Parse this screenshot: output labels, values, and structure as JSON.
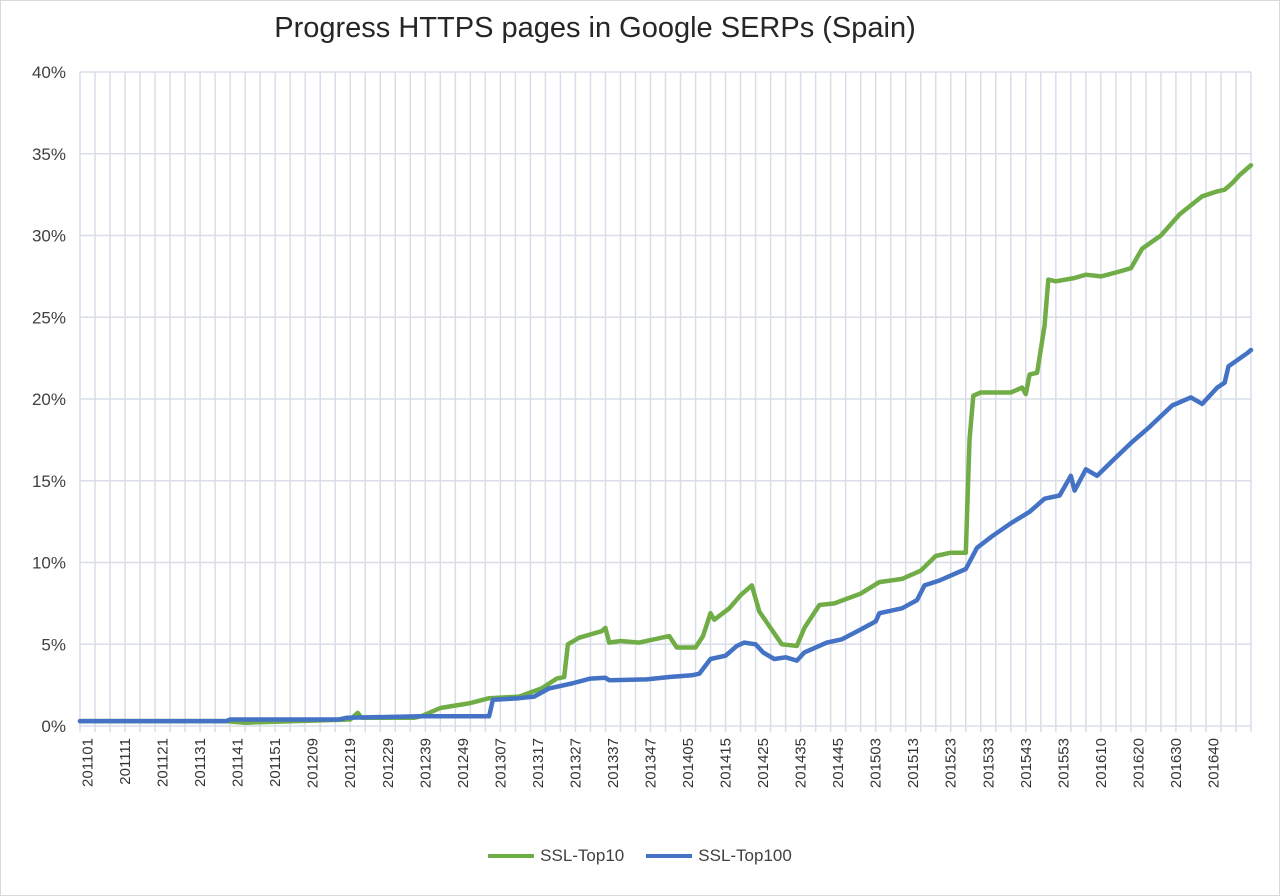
{
  "chart_data": {
    "type": "line",
    "title": "Progress HTTPS pages in Google SERPs (Spain)",
    "xlabel": "",
    "ylabel": "",
    "ylim": [
      0,
      40
    ],
    "yticks": [
      "0%",
      "5%",
      "10%",
      "15%",
      "20%",
      "25%",
      "30%",
      "35%",
      "40%"
    ],
    "x_unit": "weeks since 201101",
    "xlim": [
      -2,
      310
    ],
    "categories": [
      "201101",
      "201111",
      "201121",
      "201131",
      "201141",
      "201151",
      "201209",
      "201219",
      "201229",
      "201239",
      "201249",
      "201307",
      "201317",
      "201327",
      "201337",
      "201347",
      "201405",
      "201415",
      "201425",
      "201435",
      "201445",
      "201503",
      "201513",
      "201523",
      "201533",
      "201543",
      "201553",
      "201610",
      "201620",
      "201630",
      "201640"
    ],
    "category_step_weeks": 10,
    "grid": true,
    "legend_position": "bottom",
    "series": [
      {
        "name": "SSL-Top10",
        "color": "#70ad47",
        "points": [
          [
            -2,
            0.3
          ],
          [
            37,
            0.3
          ],
          [
            42,
            0.2
          ],
          [
            70,
            0.4
          ],
          [
            72,
            0.8
          ],
          [
            73,
            0.5
          ],
          [
            87,
            0.5
          ],
          [
            89,
            0.6
          ],
          [
            94,
            1.1
          ],
          [
            102,
            1.4
          ],
          [
            107,
            1.7
          ],
          [
            115,
            1.8
          ],
          [
            121,
            2.3
          ],
          [
            125,
            2.9
          ],
          [
            127,
            3.0
          ],
          [
            128,
            5.0
          ],
          [
            131,
            5.4
          ],
          [
            137,
            5.8
          ],
          [
            138,
            6.0
          ],
          [
            139,
            5.1
          ],
          [
            142,
            5.2
          ],
          [
            147,
            5.1
          ],
          [
            153,
            5.4
          ],
          [
            155,
            5.5
          ],
          [
            157,
            4.8
          ],
          [
            162,
            4.8
          ],
          [
            164,
            5.5
          ],
          [
            166,
            6.9
          ],
          [
            167,
            6.5
          ],
          [
            171,
            7.2
          ],
          [
            174,
            8.0
          ],
          [
            177,
            8.6
          ],
          [
            179,
            7.0
          ],
          [
            185,
            5.0
          ],
          [
            189,
            4.9
          ],
          [
            191,
            6.0
          ],
          [
            195,
            7.4
          ],
          [
            199,
            7.5
          ],
          [
            206,
            8.1
          ],
          [
            211,
            8.8
          ],
          [
            217,
            9.0
          ],
          [
            222,
            9.5
          ],
          [
            226,
            10.4
          ],
          [
            230,
            10.6
          ],
          [
            234,
            10.6
          ],
          [
            235,
            17.5
          ],
          [
            236,
            20.2
          ],
          [
            238,
            20.4
          ],
          [
            246,
            20.4
          ],
          [
            249,
            20.7
          ],
          [
            250,
            20.3
          ],
          [
            251,
            21.5
          ],
          [
            253,
            21.6
          ],
          [
            255,
            24.5
          ],
          [
            256,
            27.3
          ],
          [
            258,
            27.2
          ],
          [
            263,
            27.4
          ],
          [
            266,
            27.6
          ],
          [
            270,
            27.5
          ],
          [
            275,
            27.8
          ],
          [
            278,
            28.0
          ],
          [
            281,
            29.2
          ],
          [
            286,
            30.0
          ],
          [
            291,
            31.3
          ],
          [
            297,
            32.4
          ],
          [
            301,
            32.7
          ],
          [
            303,
            32.8
          ],
          [
            305,
            33.2
          ],
          [
            307,
            33.7
          ],
          [
            310,
            34.3
          ]
        ]
      },
      {
        "name": "SSL-Top100",
        "color": "#4472c4",
        "points": [
          [
            -2,
            0.3
          ],
          [
            37,
            0.3
          ],
          [
            38,
            0.4
          ],
          [
            67,
            0.4
          ],
          [
            69,
            0.5
          ],
          [
            89,
            0.6
          ],
          [
            107,
            0.6
          ],
          [
            108,
            1.6
          ],
          [
            115,
            1.7
          ],
          [
            119,
            1.8
          ],
          [
            123,
            2.3
          ],
          [
            129,
            2.6
          ],
          [
            134,
            2.9
          ],
          [
            138,
            2.95
          ],
          [
            139,
            2.8
          ],
          [
            149,
            2.85
          ],
          [
            155,
            3.0
          ],
          [
            161,
            3.1
          ],
          [
            163,
            3.2
          ],
          [
            166,
            4.1
          ],
          [
            170,
            4.3
          ],
          [
            173,
            4.9
          ],
          [
            175,
            5.1
          ],
          [
            178,
            5.0
          ],
          [
            180,
            4.5
          ],
          [
            183,
            4.1
          ],
          [
            186,
            4.2
          ],
          [
            189,
            4.0
          ],
          [
            191,
            4.5
          ],
          [
            197,
            5.1
          ],
          [
            201,
            5.3
          ],
          [
            206,
            5.9
          ],
          [
            210,
            6.4
          ],
          [
            211,
            6.9
          ],
          [
            217,
            7.2
          ],
          [
            221,
            7.7
          ],
          [
            223,
            8.6
          ],
          [
            227,
            8.9
          ],
          [
            231,
            9.3
          ],
          [
            234,
            9.6
          ],
          [
            237,
            10.9
          ],
          [
            241,
            11.6
          ],
          [
            246,
            12.4
          ],
          [
            251,
            13.1
          ],
          [
            255,
            13.9
          ],
          [
            259,
            14.1
          ],
          [
            262,
            15.3
          ],
          [
            263,
            14.4
          ],
          [
            266,
            15.7
          ],
          [
            269,
            15.3
          ],
          [
            273,
            16.2
          ],
          [
            278,
            17.3
          ],
          [
            283,
            18.3
          ],
          [
            289,
            19.6
          ],
          [
            294,
            20.1
          ],
          [
            297,
            19.7
          ],
          [
            301,
            20.7
          ],
          [
            303,
            21.0
          ],
          [
            304,
            22.0
          ],
          [
            309,
            22.8
          ],
          [
            310,
            23.0
          ]
        ]
      }
    ]
  }
}
